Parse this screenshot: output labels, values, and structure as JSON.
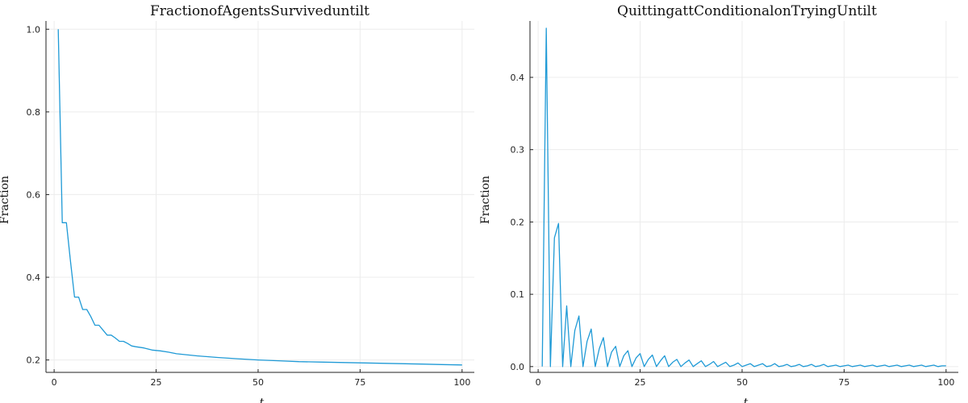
{
  "chart_data": [
    {
      "type": "line",
      "title": "FractionofAgentsSurviveduntilt",
      "xlabel": "t",
      "ylabel": "Fraction",
      "xlim": [
        -2,
        103
      ],
      "ylim": [
        0.17,
        1.02
      ],
      "xticks": [
        0,
        25,
        50,
        75,
        100
      ],
      "yticks": [
        0.2,
        0.4,
        0.6,
        0.8,
        1.0
      ],
      "xtick_labels": [
        "0",
        "25",
        "50",
        "75",
        "100"
      ],
      "ytick_labels": [
        "0.2",
        "0.4",
        "0.6",
        "0.8",
        "1.0"
      ],
      "grid": true,
      "color": "#1f9ad6",
      "series": [
        {
          "x": [
            1,
            2,
            3,
            4,
            5,
            6,
            7,
            8,
            9,
            10,
            11,
            12,
            13,
            14,
            15,
            16,
            17,
            18,
            19,
            20,
            22,
            24,
            26,
            28,
            30,
            35,
            40,
            45,
            50,
            55,
            60,
            65,
            70,
            75,
            80,
            85,
            90,
            95,
            100
          ],
          "values": [
            1.0,
            0.532,
            0.532,
            0.44,
            0.352,
            0.352,
            0.322,
            0.322,
            0.305,
            0.284,
            0.284,
            0.272,
            0.26,
            0.26,
            0.253,
            0.245,
            0.245,
            0.24,
            0.234,
            0.232,
            0.229,
            0.224,
            0.222,
            0.219,
            0.215,
            0.21,
            0.206,
            0.203,
            0.2,
            0.198,
            0.196,
            0.195,
            0.194,
            0.193,
            0.192,
            0.191,
            0.19,
            0.189,
            0.188
          ]
        }
      ]
    },
    {
      "type": "line",
      "title": "QuittingattConditionalonTryingUntilt",
      "xlabel": "t",
      "ylabel": "Fraction",
      "xlim": [
        -2,
        103
      ],
      "ylim": [
        -0.008,
        0.478
      ],
      "xticks": [
        0,
        25,
        50,
        75,
        100
      ],
      "yticks": [
        0.0,
        0.1,
        0.2,
        0.3,
        0.4
      ],
      "xtick_labels": [
        "0",
        "25",
        "50",
        "75",
        "100"
      ],
      "ytick_labels": [
        "0.0",
        "0.1",
        "0.2",
        "0.3",
        "0.4"
      ],
      "grid": true,
      "color": "#1f9ad6",
      "series": [
        {
          "x": [
            1,
            2,
            3,
            4,
            5,
            6,
            7,
            8,
            9,
            10,
            11,
            12,
            13,
            14,
            15,
            16,
            17,
            18,
            19,
            20,
            21,
            22,
            23,
            24,
            25,
            26,
            27,
            28,
            29,
            30,
            31,
            32,
            33,
            34,
            35,
            36,
            37,
            38,
            39,
            40,
            41,
            42,
            43,
            44,
            45,
            46,
            47,
            48,
            49,
            50,
            51,
            52,
            53,
            54,
            55,
            56,
            57,
            58,
            59,
            60,
            61,
            62,
            63,
            64,
            65,
            66,
            67,
            68,
            69,
            70,
            71,
            72,
            73,
            74,
            75,
            76,
            77,
            78,
            79,
            80,
            81,
            82,
            83,
            84,
            85,
            86,
            87,
            88,
            89,
            90,
            91,
            92,
            93,
            94,
            95,
            96,
            97,
            98,
            99,
            100
          ],
          "values": [
            0.0,
            0.468,
            0.0,
            0.178,
            0.198,
            0.0,
            0.084,
            0.0,
            0.05,
            0.07,
            0.0,
            0.035,
            0.052,
            0.0,
            0.025,
            0.04,
            0.0,
            0.02,
            0.028,
            0.0,
            0.015,
            0.022,
            0.0,
            0.012,
            0.018,
            0.0,
            0.01,
            0.016,
            0.0,
            0.008,
            0.015,
            0.0,
            0.006,
            0.01,
            0.0,
            0.005,
            0.009,
            0.0,
            0.004,
            0.008,
            0.0,
            0.003,
            0.007,
            0.0,
            0.003,
            0.006,
            0.0,
            0.002,
            0.005,
            0.0,
            0.002,
            0.004,
            0.0,
            0.002,
            0.004,
            0.0,
            0.001,
            0.004,
            0.0,
            0.001,
            0.003,
            0.0,
            0.001,
            0.003,
            0.0,
            0.001,
            0.003,
            0.0,
            0.001,
            0.003,
            0.0,
            0.001,
            0.002,
            0.0,
            0.001,
            0.002,
            0.0,
            0.001,
            0.002,
            0.0,
            0.001,
            0.002,
            0.0,
            0.001,
            0.002,
            0.0,
            0.001,
            0.002,
            0.0,
            0.001,
            0.002,
            0.0,
            0.001,
            0.002,
            0.0,
            0.001,
            0.002,
            0.0,
            0.001,
            0.001
          ]
        }
      ]
    }
  ]
}
